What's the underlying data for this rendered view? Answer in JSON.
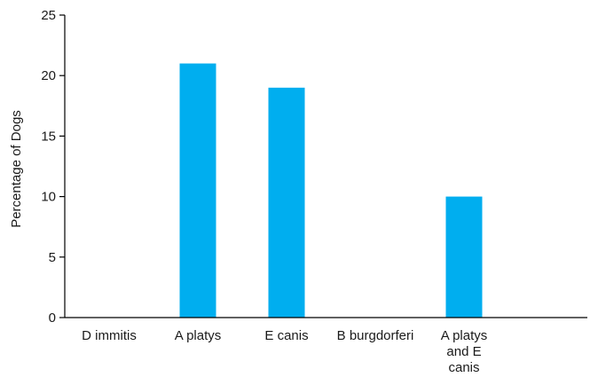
{
  "chart_data": {
    "type": "bar",
    "title": "",
    "xlabel": "",
    "ylabel": "Percentage of Dogs",
    "ylim": [
      0,
      25
    ],
    "yticks": [
      0,
      5,
      10,
      15,
      20,
      25
    ],
    "grid": false,
    "legend": "none",
    "bar_color": "#00AEEF",
    "categories": [
      [
        "D immitis"
      ],
      [
        "A platys"
      ],
      [
        "E canis"
      ],
      [
        "B burgdorferi"
      ],
      [
        "A platys",
        "and E",
        "canis"
      ]
    ],
    "values": [
      0,
      21,
      19,
      0,
      10
    ]
  }
}
